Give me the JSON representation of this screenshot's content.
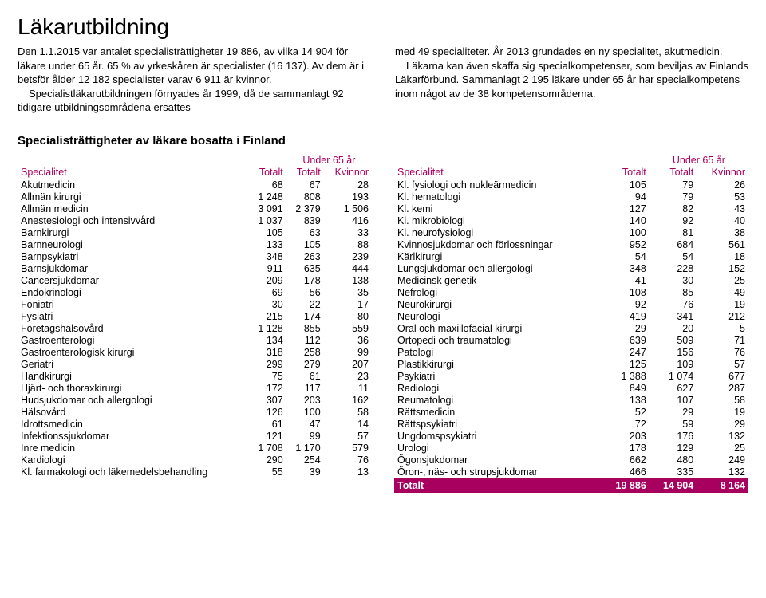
{
  "title": "Läkarutbildning",
  "intro": {
    "left": {
      "p1": "Den 1.1.2015 var antalet specialisträttigheter 19 886, av vilka 14 904 för läkare under 65 år. 65 % av yrkeskåren är specialister (16 137). Av dem är i betsför ålder 12 182 specialister varav 6 911 är kvinnor.",
      "p2": "Specialistläkarutbildningen förnyades år 1999, då de sammanlagt 92 tidigare utbildningsområdena ersattes"
    },
    "right": {
      "p1": "med 49 specialiteter. År 2013 grundades en ny specialitet, akutmedicin.",
      "p2": "Läkarna kan även skaffa sig specialkompetenser, som beviljas av Finlands Läkarförbund. Sammanlagt 2 195 läkare under 65 år har specialkompetens inom något av de 38 kompetensområderna."
    }
  },
  "subtitle": "Specialisträttigheter av läkare bosatta i Finland",
  "headers": {
    "spec": "Specialitet",
    "total": "Totalt",
    "group": "Under 65 år",
    "sub_total": "Totalt",
    "sub_women": "Kvinnor"
  },
  "left_rows": [
    {
      "n": "Akutmedicin",
      "t": "68",
      "u": "67",
      "k": "28"
    },
    {
      "n": "Allmän kirurgi",
      "t": "1 248",
      "u": "808",
      "k": "193"
    },
    {
      "n": "Allmän medicin",
      "t": "3 091",
      "u": "2 379",
      "k": "1 506"
    },
    {
      "n": "Anestesiologi och intensivvård",
      "t": "1 037",
      "u": "839",
      "k": "416"
    },
    {
      "n": "Barnkirurgi",
      "t": "105",
      "u": "63",
      "k": "33"
    },
    {
      "n": "Barnneurologi",
      "t": "133",
      "u": "105",
      "k": "88"
    },
    {
      "n": "Barnpsykiatri",
      "t": "348",
      "u": "263",
      "k": "239"
    },
    {
      "n": "Barnsjukdomar",
      "t": "911",
      "u": "635",
      "k": "444"
    },
    {
      "n": "Cancersjukdomar",
      "t": "209",
      "u": "178",
      "k": "138"
    },
    {
      "n": "Endokrinologi",
      "t": "69",
      "u": "56",
      "k": "35"
    },
    {
      "n": "Foniatri",
      "t": "30",
      "u": "22",
      "k": "17"
    },
    {
      "n": "Fysiatri",
      "t": "215",
      "u": "174",
      "k": "80"
    },
    {
      "n": "Företagshälsovård",
      "t": "1 128",
      "u": "855",
      "k": "559"
    },
    {
      "n": "Gastroenterologi",
      "t": "134",
      "u": "112",
      "k": "36"
    },
    {
      "n": "Gastroenterologisk kirurgi",
      "t": "318",
      "u": "258",
      "k": "99"
    },
    {
      "n": "Geriatri",
      "t": "299",
      "u": "279",
      "k": "207"
    },
    {
      "n": "Handkirurgi",
      "t": "75",
      "u": "61",
      "k": "23"
    },
    {
      "n": "Hjärt- och thoraxkirurgi",
      "t": "172",
      "u": "117",
      "k": "11"
    },
    {
      "n": "Hudsjukdomar och allergologi",
      "t": "307",
      "u": "203",
      "k": "162"
    },
    {
      "n": "Hälsovård",
      "t": "126",
      "u": "100",
      "k": "58"
    },
    {
      "n": "Idrottsmedicin",
      "t": "61",
      "u": "47",
      "k": "14"
    },
    {
      "n": "Infektionssjukdomar",
      "t": "121",
      "u": "99",
      "k": "57"
    },
    {
      "n": "Inre medicin",
      "t": "1 708",
      "u": "1 170",
      "k": "579"
    },
    {
      "n": "Kardiologi",
      "t": "290",
      "u": "254",
      "k": "76"
    },
    {
      "n": "Kl. farmakologi och läkemedelsbehandling",
      "t": "55",
      "u": "39",
      "k": "13"
    }
  ],
  "right_rows": [
    {
      "n": "Kl. fysiologi och nukleärmedicin",
      "t": "105",
      "u": "79",
      "k": "26"
    },
    {
      "n": "Kl. hematologi",
      "t": "94",
      "u": "79",
      "k": "53"
    },
    {
      "n": "Kl. kemi",
      "t": "127",
      "u": "82",
      "k": "43"
    },
    {
      "n": "Kl. mikrobiologi",
      "t": "140",
      "u": "92",
      "k": "40"
    },
    {
      "n": "Kl. neurofysiologi",
      "t": "100",
      "u": "81",
      "k": "38"
    },
    {
      "n": "Kvinnosjukdomar och förlossningar",
      "t": "952",
      "u": "684",
      "k": "561"
    },
    {
      "n": "Kärlkirurgi",
      "t": "54",
      "u": "54",
      "k": "18"
    },
    {
      "n": "Lungsjukdomar och allergologi",
      "t": "348",
      "u": "228",
      "k": "152"
    },
    {
      "n": "Medicinsk genetik",
      "t": "41",
      "u": "30",
      "k": "25"
    },
    {
      "n": "Nefrologi",
      "t": "108",
      "u": "85",
      "k": "49"
    },
    {
      "n": "Neurokirurgi",
      "t": "92",
      "u": "76",
      "k": "19"
    },
    {
      "n": "Neurologi",
      "t": "419",
      "u": "341",
      "k": "212"
    },
    {
      "n": "Oral och maxillofacial kirurgi",
      "t": "29",
      "u": "20",
      "k": "5"
    },
    {
      "n": "Ortopedi och traumatologi",
      "t": "639",
      "u": "509",
      "k": "71"
    },
    {
      "n": "Patologi",
      "t": "247",
      "u": "156",
      "k": "76"
    },
    {
      "n": "Plastikkirurgi",
      "t": "125",
      "u": "109",
      "k": "57"
    },
    {
      "n": "Psykiatri",
      "t": "1 388",
      "u": "1 074",
      "k": "677"
    },
    {
      "n": "Radiologi",
      "t": "849",
      "u": "627",
      "k": "287"
    },
    {
      "n": "Reumatologi",
      "t": "138",
      "u": "107",
      "k": "58"
    },
    {
      "n": "Rättsmedicin",
      "t": "52",
      "u": "29",
      "k": "19"
    },
    {
      "n": "Rättspsykiatri",
      "t": "72",
      "u": "59",
      "k": "29"
    },
    {
      "n": "Ungdomspsykiatri",
      "t": "203",
      "u": "176",
      "k": "132"
    },
    {
      "n": "Urologi",
      "t": "178",
      "u": "129",
      "k": "25"
    },
    {
      "n": "Ögonsjukdomar",
      "t": "662",
      "u": "480",
      "k": "249"
    },
    {
      "n": "Öron-, näs- och strupsjukdomar",
      "t": "466",
      "u": "335",
      "k": "132"
    }
  ],
  "total_row": {
    "n": "Totalt",
    "t": "19 886",
    "u": "14 904",
    "k": "8 164"
  },
  "accent_color": "#a7005f"
}
